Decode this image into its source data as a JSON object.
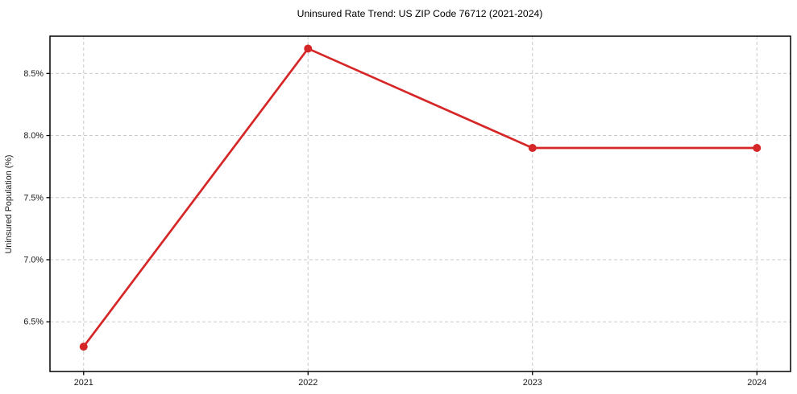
{
  "chart_data": {
    "type": "line",
    "title": "Uninsured Rate Trend: US ZIP Code 76712 (2021-2024)",
    "xlabel": "",
    "ylabel": "Uninsured Population (%)",
    "x": [
      2021,
      2022,
      2023,
      2024
    ],
    "x_tick_labels": [
      "2021",
      "2022",
      "2023",
      "2024"
    ],
    "y_ticks": [
      6.5,
      7.0,
      7.5,
      8.0,
      8.5
    ],
    "y_tick_labels": [
      "6.5%",
      "7.0%",
      "7.5%",
      "8.0%",
      "8.5%"
    ],
    "series": [
      {
        "values": [
          6.3,
          8.7,
          7.9,
          7.9
        ],
        "marker": "circle"
      }
    ],
    "xlim": [
      2020.85,
      2024.15
    ],
    "ylim": [
      6.1,
      8.8
    ],
    "grid": true,
    "grid_style": "dashed",
    "legend_position": "none"
  },
  "colors": {
    "line": "#d62728",
    "grid": "#c9c9c9",
    "spine": "#000000",
    "tick_text": "#1a1a1a",
    "title_text": "#000000"
  }
}
